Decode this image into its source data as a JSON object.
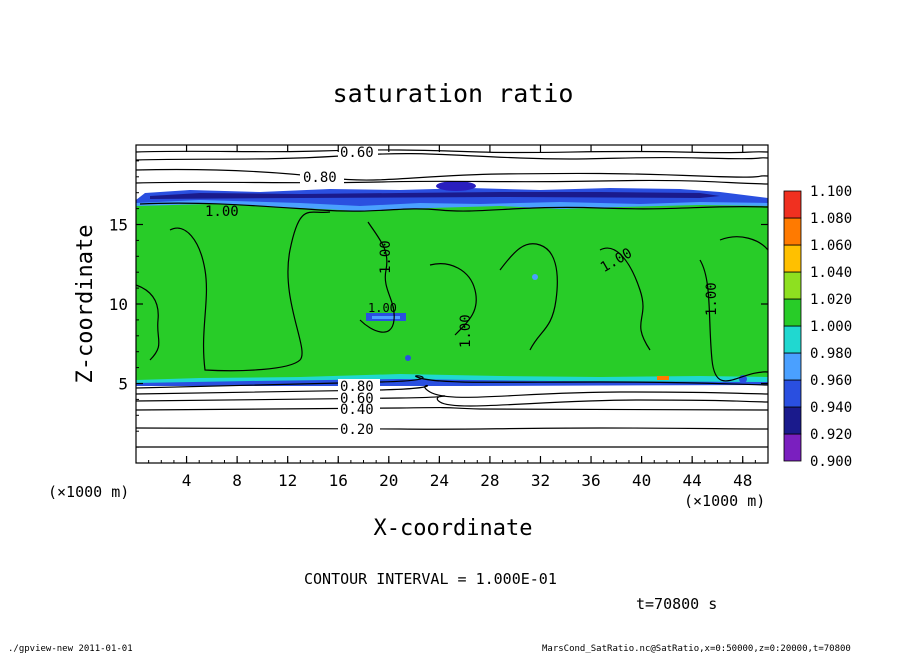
{
  "chart_data": {
    "type": "heatmap",
    "title": "saturation ratio",
    "xlabel": "X-coordinate",
    "ylabel": "Z-coordinate",
    "x_unit_left": "(×1000 m)",
    "x_unit_right": "(×1000 m)",
    "xlim": [
      0,
      50
    ],
    "ylim": [
      0,
      20
    ],
    "x_ticks": [
      "4",
      "8",
      "12",
      "16",
      "20",
      "24",
      "28",
      "32",
      "36",
      "40",
      "44",
      "48"
    ],
    "x_tick_values": [
      4,
      8,
      12,
      16,
      20,
      24,
      28,
      32,
      36,
      40,
      44,
      48
    ],
    "y_ticks": [
      "5",
      "10",
      "15"
    ],
    "y_tick_values": [
      5,
      10,
      15
    ],
    "contour_labels": [
      "0.60",
      "0.80",
      "1.00",
      "1.00",
      "1.00",
      "1.00",
      "1.00",
      "0.80",
      "0.60",
      "0.40",
      "0.20",
      "1.00"
    ],
    "contour_interval_text": "CONTOUR INTERVAL = 1.000E-01",
    "time_text": "t=70800 s",
    "colorbar": {
      "levels": [
        "0.900",
        "0.920",
        "0.940",
        "0.960",
        "0.980",
        "1.000",
        "1.020",
        "1.040",
        "1.060",
        "1.080",
        "1.100"
      ],
      "colors": [
        "#7a1fbf",
        "#1a1a8c",
        "#2a4fe0",
        "#4aa0ff",
        "#20d8d0",
        "#28cc28",
        "#8ee020",
        "#ffc000",
        "#ff7a00",
        "#f03020",
        "#ff9090"
      ]
    }
  },
  "footer": {
    "left": "./gpview-new   2011-01-01",
    "right": "MarsCond_SatRatio.nc@SatRatio,x=0:50000,z=0:20000,t=70800"
  }
}
